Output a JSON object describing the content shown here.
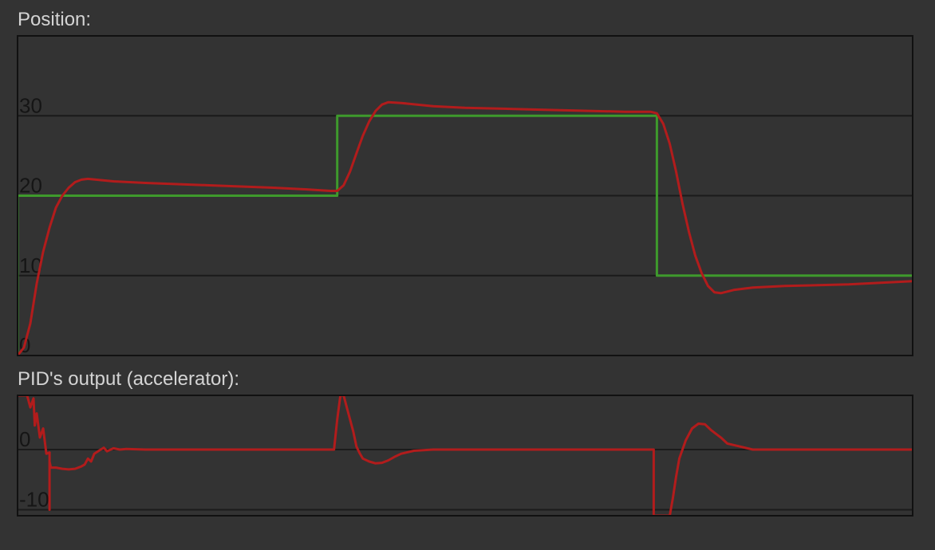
{
  "chart_data": [
    {
      "type": "line",
      "title": "Position:",
      "ylim": [
        0,
        40
      ],
      "xlim": [
        0,
        14
      ],
      "yticks": [
        0,
        10,
        20,
        30
      ],
      "ytick_labels": [
        "0",
        "10",
        "20",
        "30"
      ],
      "grid": true,
      "series": [
        {
          "color": "#3e9a2c",
          "x": [
            0,
            0,
            5,
            5,
            10,
            10,
            14
          ],
          "y": [
            0,
            20,
            20,
            30,
            30,
            10,
            10
          ]
        },
        {
          "color": "#b21c1c",
          "x": [
            0,
            0.1,
            0.2,
            0.3,
            0.4,
            0.5,
            0.6,
            0.7,
            0.8,
            0.9,
            1.0,
            1.1,
            1.5,
            2.0,
            3.0,
            4.0,
            4.5,
            4.9,
            5.0,
            5.1,
            5.2,
            5.3,
            5.4,
            5.5,
            5.6,
            5.7,
            5.8,
            6.0,
            6.5,
            7.0,
            8.0,
            9.0,
            9.5,
            9.9,
            10.0,
            10.1,
            10.2,
            10.3,
            10.4,
            10.5,
            10.6,
            10.7,
            10.8,
            10.9,
            11.0,
            11.2,
            11.5,
            12.0,
            13.0,
            14.0
          ],
          "y": [
            0,
            1,
            4,
            9,
            13,
            16,
            18.5,
            20,
            21,
            21.7,
            22,
            22.1,
            21.8,
            21.6,
            21.3,
            21,
            20.8,
            20.6,
            20.6,
            21.3,
            23,
            25.3,
            27.5,
            29.3,
            30.6,
            31.4,
            31.7,
            31.6,
            31.2,
            31,
            30.8,
            30.6,
            30.5,
            30.5,
            30.3,
            29,
            26.5,
            23,
            19,
            15.5,
            12.5,
            10.3,
            8.7,
            7.9,
            7.8,
            8.2,
            8.5,
            8.7,
            8.9,
            9.3
          ]
        }
      ]
    },
    {
      "type": "line",
      "title": "PID's output (accelerator):",
      "ylim": [
        -11,
        9
      ],
      "xlim": [
        0,
        14
      ],
      "yticks": [
        0,
        -10
      ],
      "ytick_labels": [
        "0",
        "-10"
      ],
      "grid": true,
      "series": [
        {
          "color": "#b21c1c",
          "x": [
            0,
            0.15,
            0.2,
            0.25,
            0.27,
            0.3,
            0.35,
            0.4,
            0.45,
            0.5,
            0.5,
            0.5,
            0.52,
            0.55,
            0.6,
            0.7,
            0.8,
            0.9,
            0.95,
            1.0,
            1.05,
            1.1,
            1.15,
            1.2,
            1.3,
            1.35,
            1.4,
            1.5,
            1.6,
            1.7,
            2.0,
            3.0,
            4.95,
            5.0,
            5.05,
            5.1,
            5.15,
            5.25,
            5.3,
            5.35,
            5.4,
            5.5,
            5.6,
            5.7,
            5.8,
            5.9,
            6.0,
            6.2,
            6.5,
            7.0,
            8.0,
            9.0,
            9.95,
            9.95,
            10.2,
            10.25,
            10.3,
            10.35,
            10.45,
            10.55,
            10.65,
            10.75,
            10.85,
            11.0,
            11.1,
            11.3,
            11.5,
            12.0,
            13.0,
            14.0
          ],
          "y": [
            9,
            9,
            7,
            8.5,
            4,
            6,
            2,
            3.5,
            -0.7,
            -0.5,
            -10,
            -2,
            -3,
            -3,
            -3,
            -3.2,
            -3.3,
            -3.2,
            -3,
            -2.8,
            -2.5,
            -1.5,
            -2,
            -0.7,
            0,
            0.3,
            -0.3,
            0.2,
            0,
            0.1,
            0,
            0,
            0,
            5,
            9,
            9,
            7,
            3,
            0.5,
            -0.6,
            -1.5,
            -2,
            -2.3,
            -2.2,
            -1.8,
            -1.2,
            -0.7,
            -0.2,
            0,
            0,
            0,
            0,
            0,
            -11,
            -11,
            -8,
            -4.5,
            -1.5,
            1.5,
            3.5,
            4.3,
            4.2,
            3.2,
            2,
            1,
            0.5,
            0,
            0,
            0,
            0
          ]
        }
      ]
    }
  ]
}
